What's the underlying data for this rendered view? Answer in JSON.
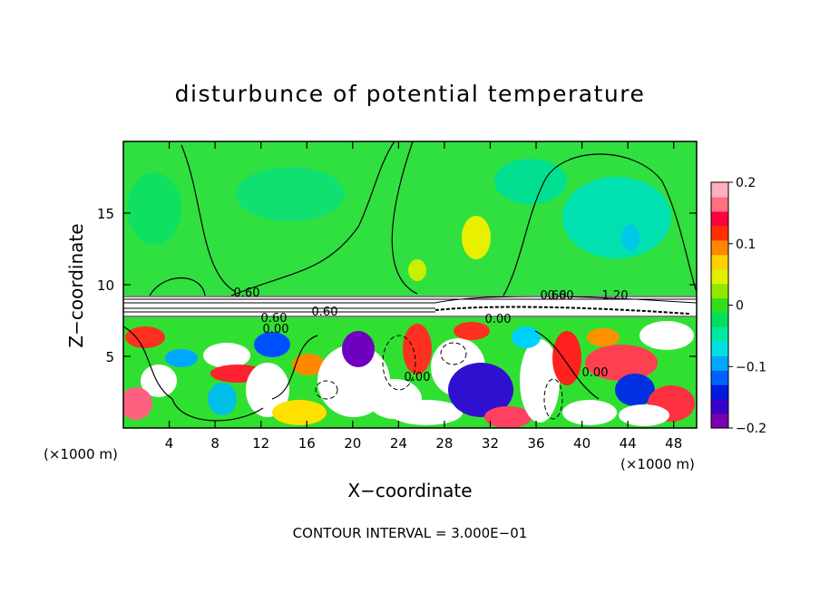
{
  "chart_data": {
    "type": "heatmap",
    "title": "disturbunce of potential temperature",
    "xlabel": "X−coordinate",
    "ylabel": "Z−coordinate",
    "x_unit": "(×1000 m)",
    "x_unit_right": "(×1000 m)",
    "x_ticks": [
      "4",
      "8",
      "12",
      "16",
      "20",
      "24",
      "28",
      "32",
      "36",
      "40",
      "44",
      "48"
    ],
    "x_tick_values": [
      4,
      8,
      12,
      16,
      20,
      24,
      28,
      32,
      36,
      40,
      44,
      48
    ],
    "xlim": [
      0,
      50
    ],
    "y_ticks": [
      "5",
      "10",
      "15"
    ],
    "y_tick_values": [
      5,
      10,
      15
    ],
    "ylim": [
      0,
      20
    ],
    "colorbar": {
      "labels": [
        "0.2",
        "0.1",
        "0",
        "−0.1",
        "−0.2"
      ],
      "values": [
        0.2,
        0.1,
        0,
        -0.1,
        -0.2
      ],
      "range": [
        -0.2,
        0.2
      ],
      "colors": [
        "#7a00b0",
        "#3a00c8",
        "#0018e0",
        "#0060ff",
        "#00a8ff",
        "#00e0e0",
        "#00e8a0",
        "#00e060",
        "#30e020",
        "#90e800",
        "#e0f000",
        "#ffd000",
        "#ff8800",
        "#ff3000",
        "#ff0040",
        "#ff7080",
        "#ffb0c0"
      ]
    },
    "contour_labels": [
      "0.60",
      "0.60",
      "0.60",
      "0.60",
      "0.00",
      "0.00",
      "0.00",
      "0.00",
      "0.60",
      "1.20"
    ],
    "footer": "CONTOUR INTERVAL = 3.000E−01"
  }
}
